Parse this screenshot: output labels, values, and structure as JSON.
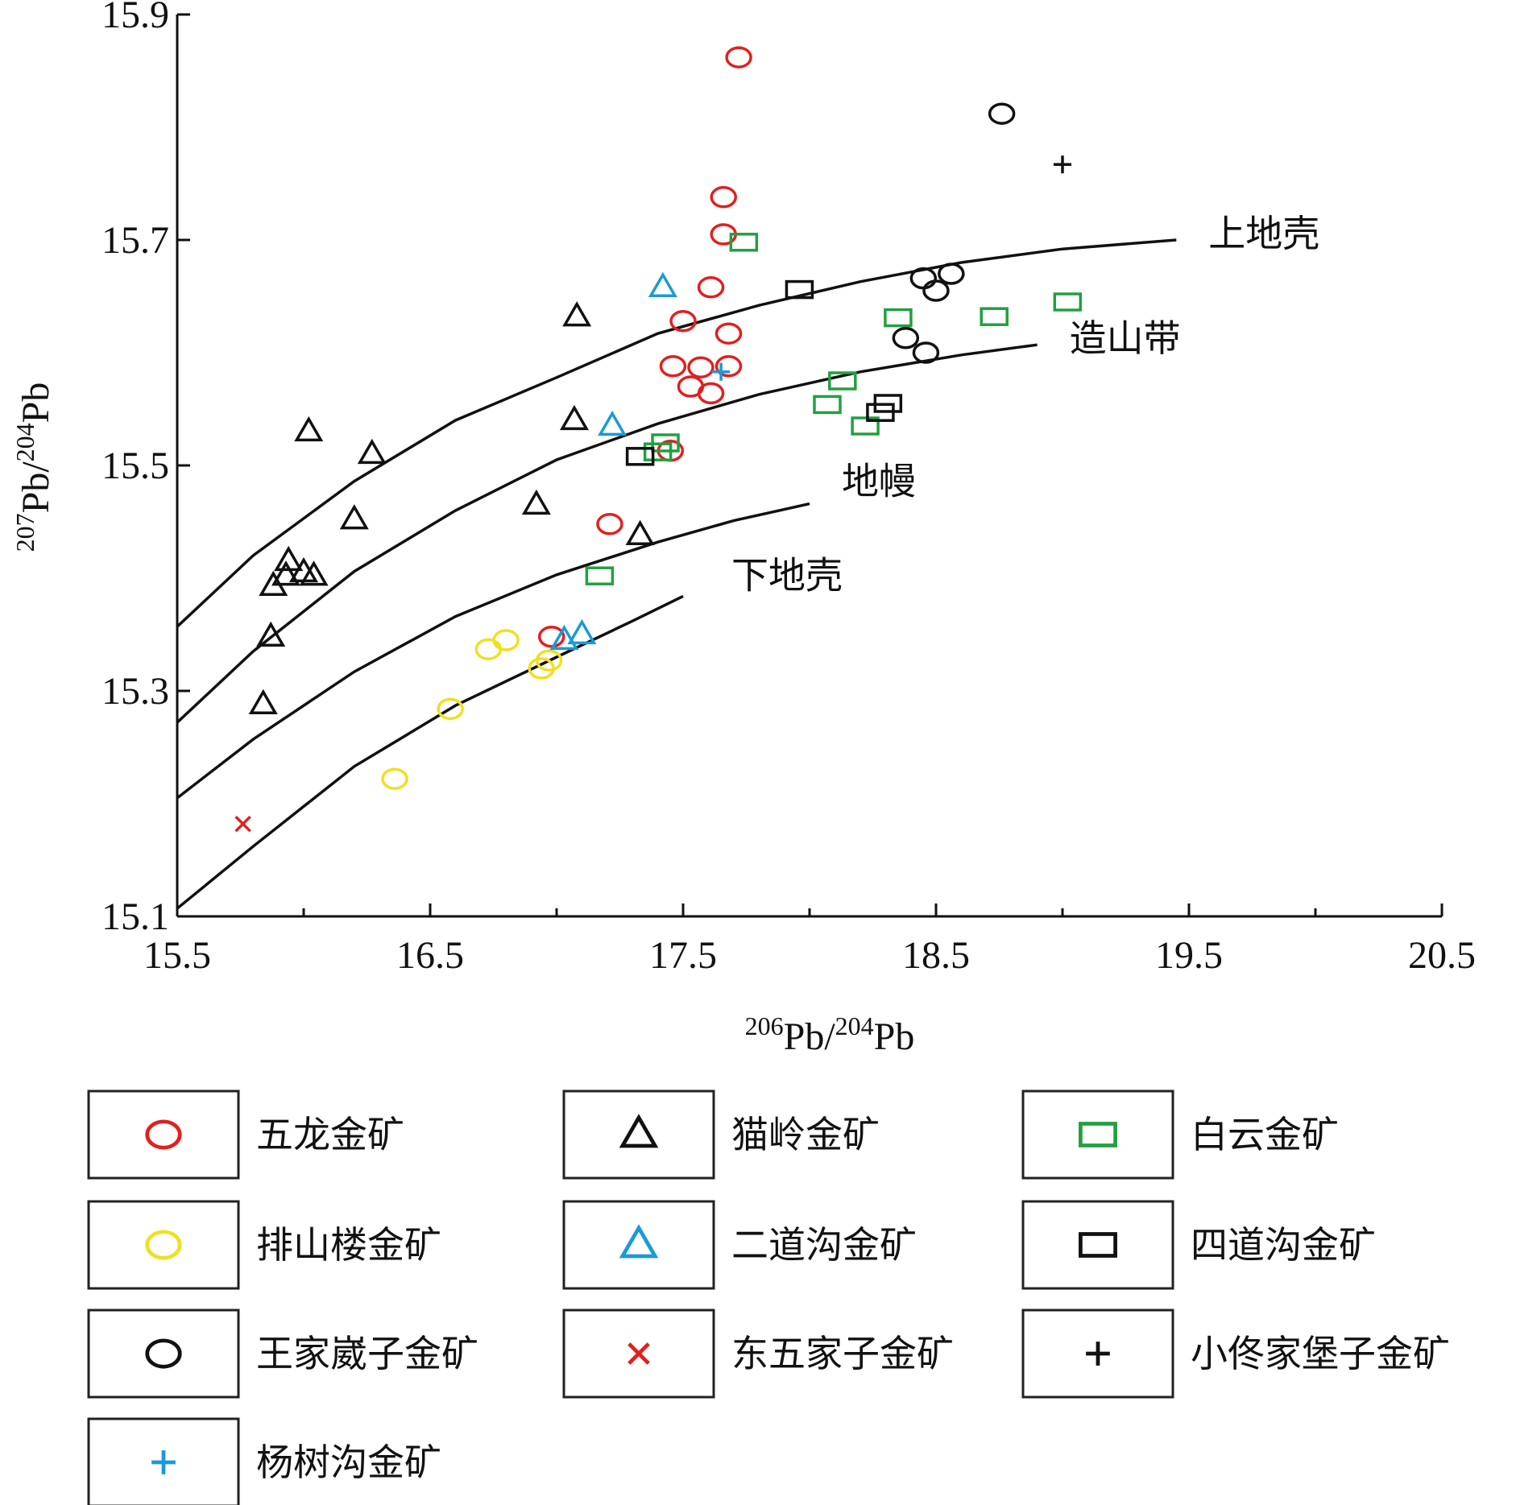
{
  "chart_data": {
    "type": "scatter",
    "xlabel": {
      "base": "Pb/",
      "sup1": "206",
      "sup2": "204",
      "tail": "Pb"
    },
    "ylabel": {
      "sup1": "207",
      "sup2": "204"
    },
    "xlim": [
      15.5,
      20.5
    ],
    "ylim": [
      15.1,
      15.9
    ],
    "x_ticks": [
      "15.5",
      "16.5",
      "17.5",
      "18.5",
      "19.5",
      "20.5"
    ],
    "y_ticks": [
      "15.1",
      "15.3",
      "15.5",
      "15.7",
      "15.9"
    ],
    "grid": false,
    "legend_placement": "bottom",
    "curves": [
      {
        "label": "上地壳",
        "points": [
          [
            15.5,
            15.357
          ],
          [
            15.8,
            15.42
          ],
          [
            16.2,
            15.486
          ],
          [
            16.6,
            15.54
          ],
          [
            17.0,
            15.578
          ],
          [
            17.4,
            15.617
          ],
          [
            17.8,
            15.642
          ],
          [
            18.2,
            15.663
          ],
          [
            18.6,
            15.68
          ],
          [
            19.0,
            15.692
          ],
          [
            19.45,
            15.7
          ]
        ]
      },
      {
        "label": "造山带",
        "points": [
          [
            15.5,
            15.272
          ],
          [
            15.8,
            15.335
          ],
          [
            16.2,
            15.406
          ],
          [
            16.6,
            15.46
          ],
          [
            17.0,
            15.505
          ],
          [
            17.4,
            15.537
          ],
          [
            17.8,
            15.563
          ],
          [
            18.2,
            15.583
          ],
          [
            18.6,
            15.598
          ],
          [
            18.9,
            15.607
          ]
        ]
      },
      {
        "label": "地幔",
        "points": [
          [
            15.5,
            15.205
          ],
          [
            15.8,
            15.257
          ],
          [
            16.2,
            15.317
          ],
          [
            16.6,
            15.366
          ],
          [
            17.0,
            15.403
          ],
          [
            17.4,
            15.432
          ],
          [
            17.7,
            15.451
          ],
          [
            18.0,
            15.466
          ]
        ]
      },
      {
        "label": "下地壳",
        "points": [
          [
            15.5,
            15.107
          ],
          [
            15.8,
            15.162
          ],
          [
            16.2,
            15.233
          ],
          [
            16.6,
            15.287
          ],
          [
            17.0,
            15.33
          ],
          [
            17.3,
            15.362
          ],
          [
            17.5,
            15.384
          ]
        ]
      }
    ],
    "series": [
      {
        "name": "五龙金矿",
        "marker": "circle",
        "color": "#e02020",
        "points": [
          [
            17.72,
            15.862
          ],
          [
            17.66,
            15.738
          ],
          [
            17.66,
            15.705
          ],
          [
            17.61,
            15.658
          ],
          [
            17.5,
            15.628
          ],
          [
            17.68,
            15.617
          ],
          [
            17.46,
            15.588
          ],
          [
            17.57,
            15.587
          ],
          [
            17.68,
            15.588
          ],
          [
            17.53,
            15.57
          ],
          [
            17.61,
            15.564
          ],
          [
            17.45,
            15.513
          ],
          [
            17.21,
            15.448
          ],
          [
            16.98,
            15.348
          ]
        ]
      },
      {
        "name": "猫岭金矿",
        "marker": "triangle",
        "color": "#111111",
        "points": [
          [
            17.08,
            15.632
          ],
          [
            16.02,
            15.53
          ],
          [
            16.27,
            15.51
          ],
          [
            17.07,
            15.54
          ],
          [
            16.92,
            15.465
          ],
          [
            16.2,
            15.452
          ],
          [
            17.33,
            15.438
          ],
          [
            15.94,
            15.415
          ],
          [
            16.0,
            15.405
          ],
          [
            15.93,
            15.402
          ],
          [
            16.04,
            15.402
          ],
          [
            15.88,
            15.393
          ],
          [
            15.87,
            15.348
          ],
          [
            15.84,
            15.288
          ]
        ]
      },
      {
        "name": "白云金矿",
        "marker": "square",
        "color": "#22a040",
        "points": [
          [
            17.74,
            15.698
          ],
          [
            18.35,
            15.631
          ],
          [
            18.73,
            15.632
          ],
          [
            19.02,
            15.645
          ],
          [
            18.13,
            15.575
          ],
          [
            18.07,
            15.554
          ],
          [
            18.22,
            15.535
          ],
          [
            17.43,
            15.52
          ],
          [
            17.4,
            15.512
          ],
          [
            17.17,
            15.402
          ]
        ]
      },
      {
        "name": "排山楼金矿",
        "marker": "circle",
        "color": "#f0e020",
        "points": [
          [
            16.8,
            15.345
          ],
          [
            16.73,
            15.337
          ],
          [
            16.97,
            15.327
          ],
          [
            16.94,
            15.32
          ],
          [
            16.58,
            15.284
          ],
          [
            16.36,
            15.222
          ]
        ]
      },
      {
        "name": "二道沟金矿",
        "marker": "triangle",
        "color": "#1a9ad8",
        "points": [
          [
            17.42,
            15.658
          ],
          [
            17.22,
            15.535
          ],
          [
            17.1,
            15.35
          ],
          [
            17.03,
            15.345
          ]
        ]
      },
      {
        "name": "四道沟金矿",
        "marker": "square",
        "color": "#111111",
        "points": [
          [
            17.96,
            15.656
          ],
          [
            18.31,
            15.555
          ],
          [
            18.28,
            15.547
          ],
          [
            17.33,
            15.508
          ]
        ]
      },
      {
        "name": "王家崴子金矿",
        "marker": "circle",
        "color": "#111111",
        "points": [
          [
            18.76,
            15.812
          ],
          [
            18.56,
            15.67
          ],
          [
            18.45,
            15.666
          ],
          [
            18.5,
            15.655
          ],
          [
            18.38,
            15.613
          ],
          [
            18.46,
            15.6
          ]
        ]
      },
      {
        "name": "东五家子金矿",
        "marker": "x",
        "color": "#e02020",
        "points": [
          [
            15.76,
            15.182
          ]
        ]
      },
      {
        "name": "小佟家堡子金矿",
        "marker": "plus",
        "color": "#111111",
        "points": [
          [
            19.0,
            15.767
          ]
        ]
      },
      {
        "name": "杨树沟金矿",
        "marker": "plus",
        "color": "#1a9ad8",
        "points": [
          [
            17.65,
            15.583
          ]
        ]
      }
    ]
  }
}
